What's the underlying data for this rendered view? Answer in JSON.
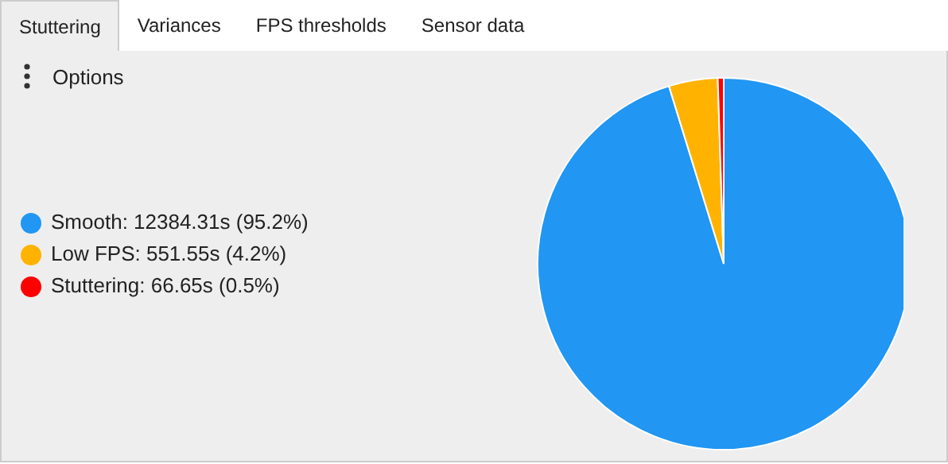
{
  "chart_data": {
    "type": "pie",
    "categories": [
      "Smooth",
      "Low FPS",
      "Stuttering"
    ],
    "values": [
      12384.31,
      551.55,
      66.65
    ],
    "value_labels": [
      ": 12384.31s (95.2%)",
      ": 551.55s (4.2%)",
      ": 66.65s (0.5%)"
    ],
    "colors": [
      "#2196f3",
      "#ffb300",
      "#ff0000"
    ],
    "legend": "left",
    "annotations": [
      "Stuttering",
      "Variances",
      "FPS thresholds",
      "Sensor data",
      "Options"
    ]
  }
}
